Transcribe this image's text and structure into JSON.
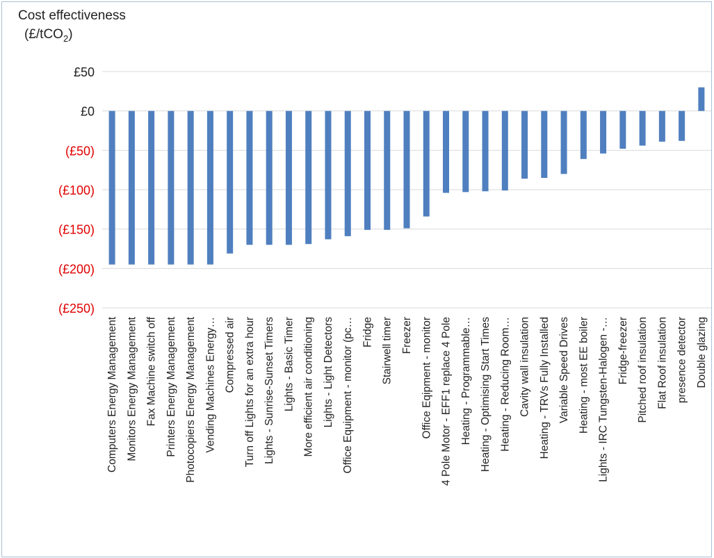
{
  "chart_data": {
    "type": "bar",
    "ylabel": "Cost effectiveness",
    "ylabel_unit_prefix": "(£/tCO",
    "ylabel_unit_sub": "2",
    "ylabel_unit_suffix": ")",
    "ylim": [
      -250,
      50
    ],
    "yticks": [
      50,
      0,
      -50,
      -100,
      -150,
      -200,
      -250
    ],
    "ytick_labels": [
      "£50",
      "£0",
      "(£50)",
      "(£100)",
      "(£150)",
      "(£200)",
      "(£250)"
    ],
    "grid": true,
    "legend": "none",
    "colors": {
      "bar": "#4f7fbf",
      "grid": "#d9d9d9",
      "negative_tick": "#e00000",
      "positive_tick": "#222222",
      "frame": "#a8c0d8"
    },
    "categories": [
      "Computers Energy Management",
      "Monitors Energy Management",
      "Fax Machine switch off",
      "Printers  Energy Management",
      "Photocopiers Energy Management",
      "Vending Machines Energy…",
      "Compressed air",
      "Turn off Lights for an extra hour",
      "Lights - Sunrise-Sunset Timers",
      "Lights - Basic Timer",
      "More efficient air conditioning",
      "Lights - Light Detectors",
      "Office Equipment  - monitor (pc…",
      "Fridge",
      "Stairwell timer",
      "Freezer",
      "Office Eqipment - monitor",
      "4 Pole Motor - EFF1 replace 4 Pole",
      "Heating - Programmable…",
      "Heating - Optimising Start Times",
      "Heating - Reducing Room…",
      "Cavity wall insulation",
      "Heating - TRVs Fully Installed",
      "Variable Speed Drives",
      "Heating - most EE boiler",
      "Lights - IRC Tungsten-Halogen -…",
      "Fridge-freezer",
      "Pitched roof insulation",
      "Flat Roof insulation",
      "presence detector",
      "Double glazing"
    ],
    "values": [
      -195,
      -195,
      -195,
      -195,
      -195,
      -195,
      -181,
      -170,
      -170,
      -170,
      -169,
      -163,
      -159,
      -151,
      -151,
      -149,
      -134,
      -104,
      -103,
      -102,
      -101,
      -86,
      -85,
      -80,
      -61,
      -54,
      -48,
      -44,
      -39,
      -38,
      30
    ]
  }
}
